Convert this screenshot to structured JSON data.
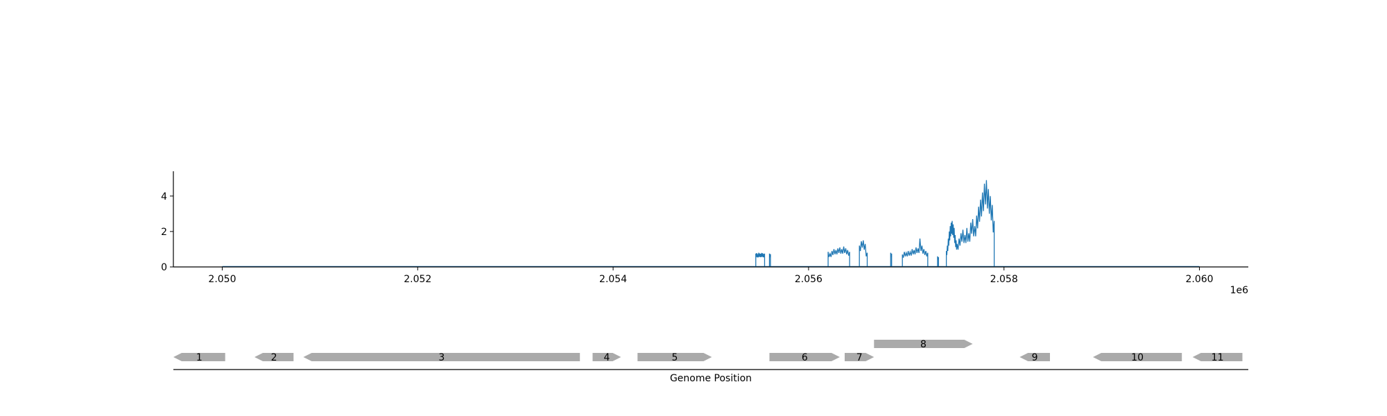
{
  "chart_data": [
    {
      "type": "line",
      "x_multiplier_label": "1e6",
      "x_ticks": [
        2.05,
        2.052,
        2.054,
        2.056,
        2.058,
        2.06
      ],
      "x_tick_labels": [
        "2.050",
        "2.052",
        "2.054",
        "2.056",
        "2.058",
        "2.060"
      ],
      "xlim": [
        2.0495,
        2.0605
      ],
      "y_ticks": [
        0,
        2,
        4
      ],
      "y_tick_labels": [
        "0",
        "2",
        "4"
      ],
      "ylim": [
        0,
        5.4
      ],
      "grid": false,
      "color": "#1f77b4",
      "baseline_range": [
        2.05,
        2.06
      ],
      "segments": [
        {
          "x": [
            2.05546,
            2.05547,
            2.05548,
            2.05549,
            2.0555,
            2.05551,
            2.05552,
            2.05553,
            2.05554,
            2.05555
          ],
          "y": [
            0.75,
            0.78,
            0.72,
            0.8,
            0.76,
            0.74,
            0.79,
            0.77,
            0.73,
            0.75
          ]
        },
        {
          "x": [
            2.0556,
            2.05561
          ],
          "y": [
            0.75,
            0.72
          ]
        },
        {
          "x": [
            2.0562,
            2.05622,
            2.05624,
            2.05626,
            2.05628,
            2.0563,
            2.05632,
            2.05634,
            2.05636,
            2.05638,
            2.0564,
            2.05642
          ],
          "y": [
            0.85,
            0.75,
            0.9,
            1.0,
            0.95,
            1.05,
            1.1,
            1.0,
            1.15,
            1.05,
            0.95,
            0.85
          ]
        },
        {
          "x": [
            2.05652,
            2.05654,
            2.05656,
            2.05658,
            2.0566
          ],
          "y": [
            1.2,
            1.45,
            1.5,
            1.3,
            0.8
          ]
        },
        {
          "x": [
            2.05684,
            2.05685
          ],
          "y": [
            0.8,
            0.75
          ]
        },
        {
          "x": [
            2.05696,
            2.05698,
            2.057,
            2.05702,
            2.05704,
            2.05706,
            2.05708,
            2.0571,
            2.05712,
            2.05714,
            2.05716,
            2.05718,
            2.0572,
            2.05722
          ],
          "y": [
            0.7,
            0.85,
            0.8,
            0.9,
            0.85,
            1.0,
            0.95,
            1.1,
            1.05,
            1.6,
            1.2,
            1.0,
            0.9,
            0.8
          ]
        },
        {
          "x": [
            2.05732,
            2.05733
          ],
          "y": [
            0.6,
            0.55
          ]
        },
        {
          "x": [
            2.05741,
            2.05742,
            2.05743,
            2.05744,
            2.05745,
            2.05746,
            2.05747,
            2.05748,
            2.05749,
            2.0575,
            2.05751,
            2.05752,
            2.05754,
            2.05756,
            2.05758,
            2.0576,
            2.05762,
            2.05764,
            2.05766,
            2.05768,
            2.0577,
            2.05772,
            2.05774,
            2.05776,
            2.05778,
            2.0578,
            2.05782,
            2.05784,
            2.05786,
            2.05788,
            2.0579
          ],
          "y": [
            0.9,
            1.2,
            1.6,
            2.0,
            2.3,
            2.5,
            2.6,
            2.4,
            2.2,
            1.8,
            1.5,
            1.3,
            1.6,
            1.9,
            2.1,
            1.8,
            2.2,
            1.9,
            2.5,
            2.7,
            2.3,
            2.9,
            3.4,
            3.8,
            4.2,
            4.7,
            4.9,
            4.4,
            4.0,
            3.5,
            2.6
          ]
        }
      ]
    },
    {
      "type": "gene_map",
      "xlabel": "Genome Position",
      "fill": "#aaaaaa",
      "genes": [
        {
          "label": "1",
          "start": 2.0495,
          "end": 2.05003,
          "strand": "-",
          "row": 0
        },
        {
          "label": "2",
          "start": 2.05033,
          "end": 2.05073,
          "strand": "-",
          "row": 0
        },
        {
          "label": "3",
          "start": 2.05083,
          "end": 2.05366,
          "strand": "-",
          "row": 0
        },
        {
          "label": "4",
          "start": 2.05379,
          "end": 2.05408,
          "strand": "+",
          "row": 0
        },
        {
          "label": "5",
          "start": 2.05425,
          "end": 2.05501,
          "strand": "+",
          "row": 0
        },
        {
          "label": "6",
          "start": 2.0556,
          "end": 2.05632,
          "strand": "+",
          "row": 0
        },
        {
          "label": "7",
          "start": 2.05637,
          "end": 2.05667,
          "strand": "+",
          "row": 0
        },
        {
          "label": "8",
          "start": 2.05667,
          "end": 2.05768,
          "strand": "+",
          "row": 1
        },
        {
          "label": "9",
          "start": 2.05816,
          "end": 2.05847,
          "strand": "-",
          "row": 0
        },
        {
          "label": "10",
          "start": 2.05891,
          "end": 2.05982,
          "strand": "-",
          "row": 0
        },
        {
          "label": "11",
          "start": 2.05993,
          "end": 2.06044,
          "strand": "-",
          "row": 0
        }
      ]
    }
  ]
}
